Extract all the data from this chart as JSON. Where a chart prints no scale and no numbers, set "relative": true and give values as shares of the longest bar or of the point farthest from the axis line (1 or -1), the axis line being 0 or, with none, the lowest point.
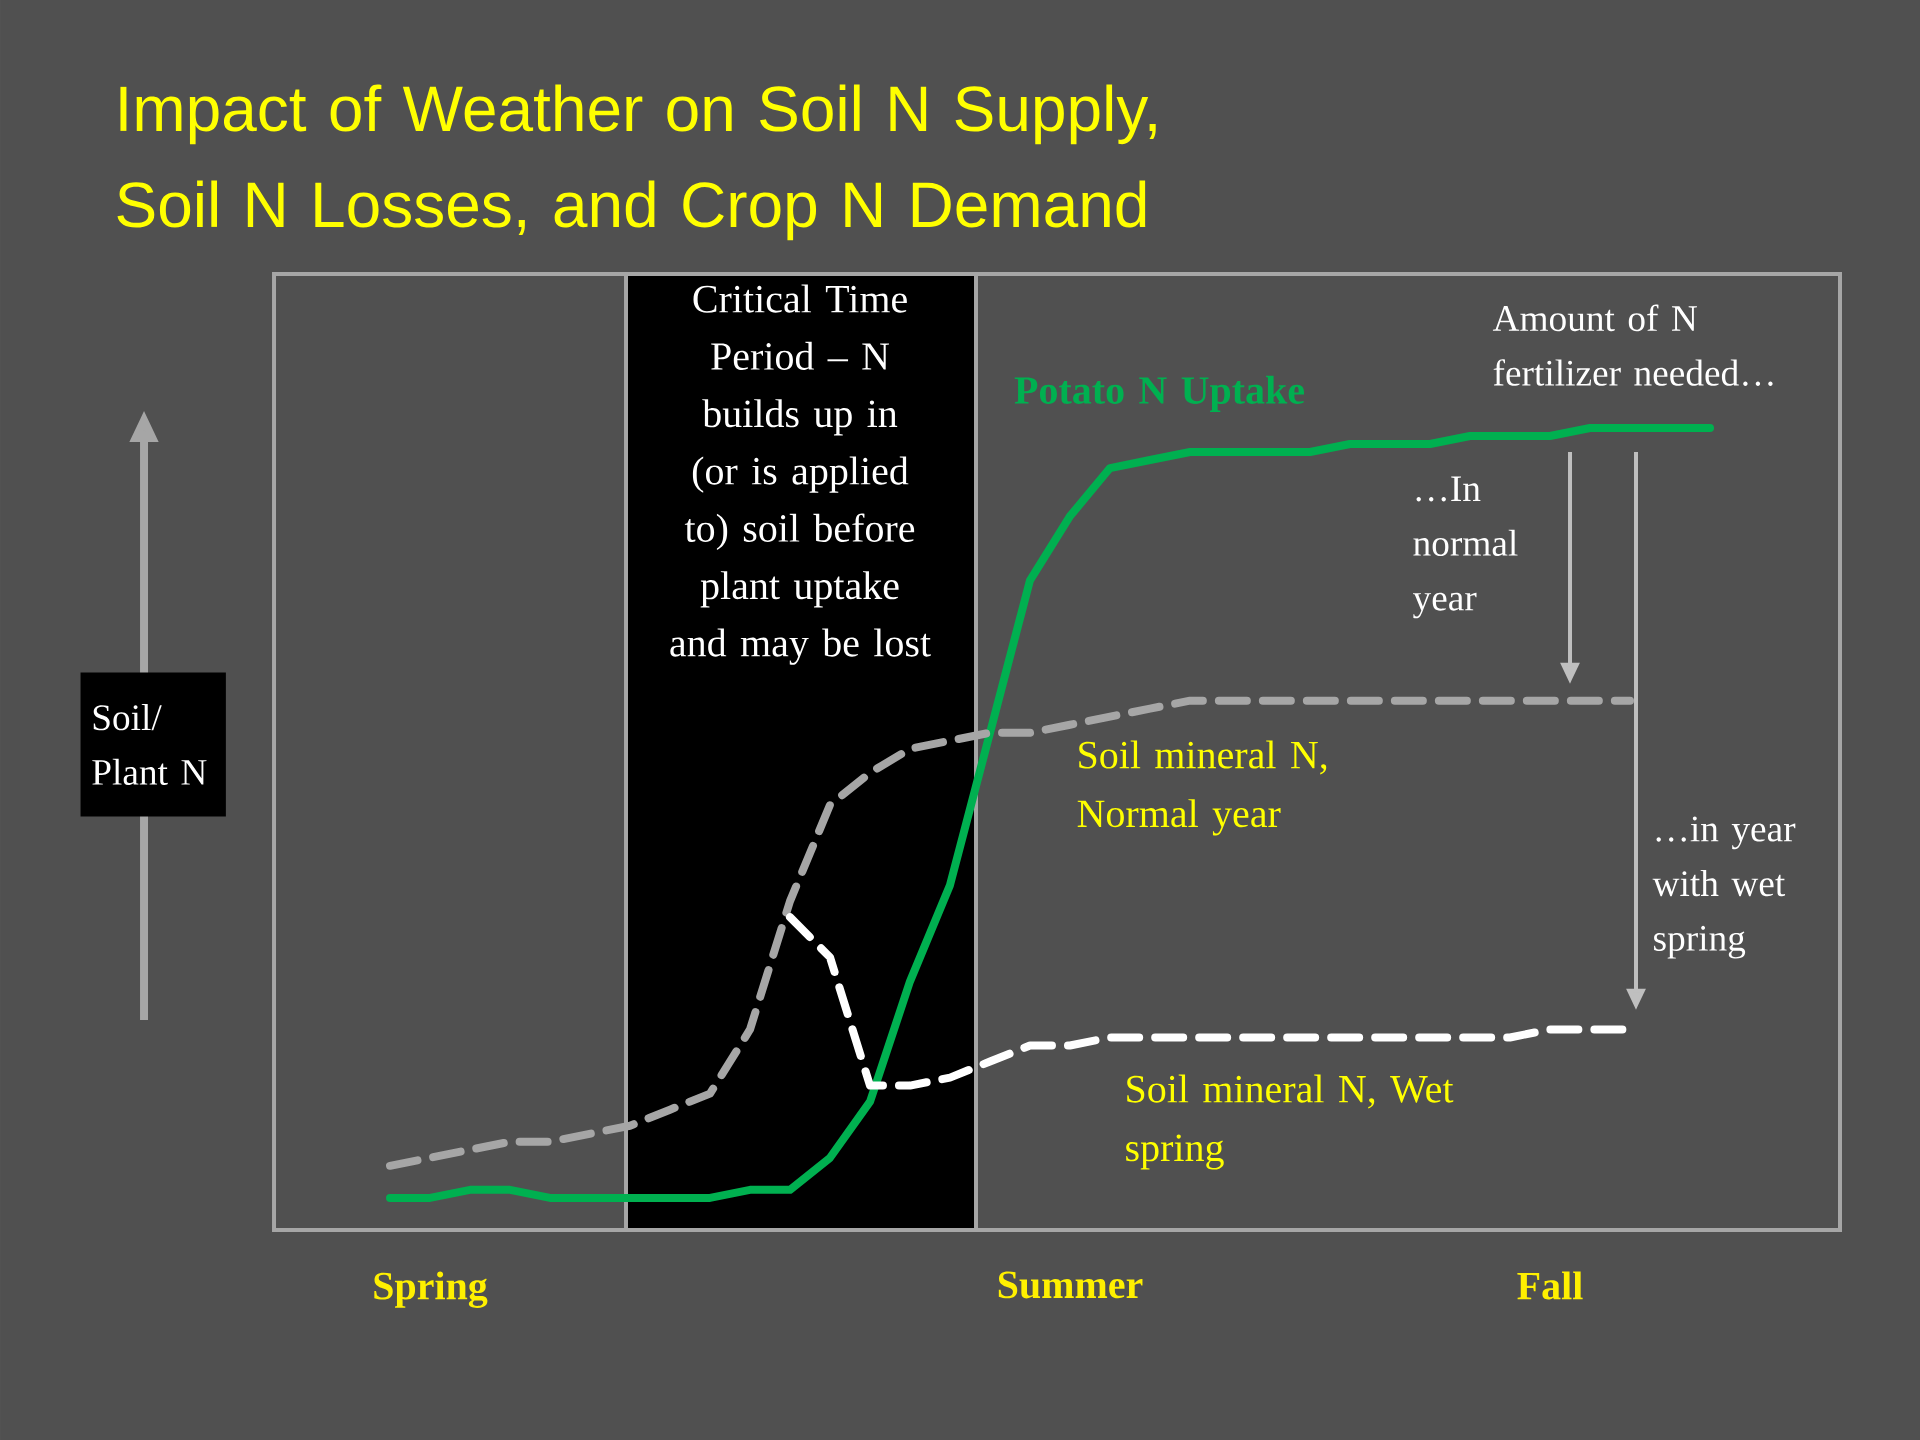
{
  "chart_data": {
    "type": "line",
    "relative": true,
    "title": "Impact of Weather on Soil N Supply, Soil N Losses, and Crop N Demand",
    "categories": [
      null,
      "Spring",
      null,
      null,
      null,
      null,
      null,
      null,
      null,
      null,
      null,
      null,
      null,
      null,
      null,
      null,
      null,
      "Summer",
      null,
      null,
      null,
      null,
      null,
      null,
      null,
      null,
      null,
      null,
      null,
      "Fall",
      null,
      null,
      null,
      null
    ],
    "annotations": [
      "Critical Time Period – N builds up in (or is applied to) soil before plant uptake and may be lost",
      "Amount of N fertilizer needed…",
      "…In normal year",
      "…in year with wet spring",
      "Soil/ Plant N"
    ],
    "series": [
      {
        "name": "Potato N Uptake",
        "color": "#00b050",
        "line_style": "solid",
        "values": [
          0.04,
          0.04,
          0.05,
          0.05,
          0.04,
          0.04,
          0.04,
          0.04,
          0.04,
          0.05,
          0.05,
          0.09,
          0.16,
          0.31,
          0.43,
          0.62,
          0.81,
          0.89,
          0.95,
          0.96,
          0.97,
          0.97,
          0.97,
          0.97,
          0.98,
          0.98,
          0.98,
          0.99,
          0.99,
          0.99,
          1.0,
          1.0,
          1.0,
          1.0
        ]
      },
      {
        "name": "Soil mineral N, Normal year",
        "color": "#a6a6a6",
        "line_style": "dashed",
        "values": [
          0.08,
          0.09,
          0.1,
          0.11,
          0.11,
          0.12,
          0.13,
          0.15,
          0.17,
          0.25,
          0.41,
          0.53,
          0.57,
          0.6,
          0.61,
          0.62,
          0.62,
          0.63,
          0.64,
          0.65,
          0.66,
          0.66,
          0.66,
          0.66,
          0.66,
          0.66,
          0.66,
          0.66,
          0.66,
          0.66,
          0.66,
          0.66,
          null,
          null
        ]
      },
      {
        "name": "Soil mineral N, Wet spring",
        "color": "#ffffff",
        "line_style": "dashed",
        "values": [
          null,
          null,
          null,
          null,
          null,
          null,
          null,
          null,
          null,
          null,
          0.39,
          0.34,
          0.18,
          0.18,
          0.19,
          0.21,
          0.23,
          0.23,
          0.24,
          0.24,
          0.24,
          0.24,
          0.24,
          0.24,
          0.24,
          0.24,
          0.24,
          0.24,
          0.24,
          0.25,
          0.25,
          0.25,
          null,
          null
        ]
      }
    ]
  }
}
